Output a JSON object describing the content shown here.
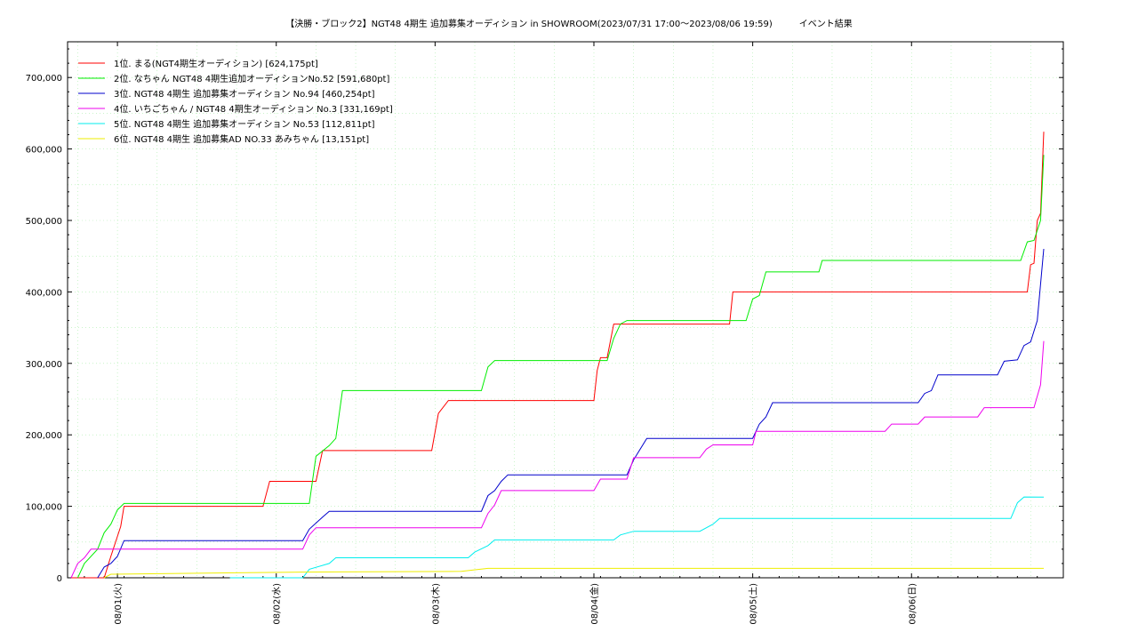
{
  "chart_data": {
    "type": "line",
    "title": "【決勝・ブロック2】NGT48 4期生 追加募集オーディション in SHOWROOM(2023/07/31 17:00～2023/08/06 19:59)　　　イベント結果",
    "xlabel": "",
    "ylabel": "",
    "ylim": [
      0,
      750000
    ],
    "xlim": [
      "2023/07/31 17:00",
      "2023/08/06 19:59"
    ],
    "grid": true,
    "legend": "top-left",
    "y_ticks": [
      "0",
      "100,000",
      "200,000",
      "300,000",
      "400,000",
      "500,000",
      "600,000",
      "700,000"
    ],
    "x_ticks": [
      "08/01(火)",
      "08/02(水)",
      "08/03(木)",
      "08/04(金)",
      "08/05(土)",
      "08/06(日)"
    ],
    "series": [
      {
        "name": "1位. まる(NGT4期生オーディション) [624,175pt]",
        "color": "#ff0000",
        "points": [
          [
            "07/31 17:00",
            0
          ],
          [
            "07/31 22:00",
            0
          ],
          [
            "07/31 23:00",
            30000
          ],
          [
            "08/01 00:00",
            58000
          ],
          [
            "08/01 00:30",
            72000
          ],
          [
            "08/01 01:00",
            100000
          ],
          [
            "08/01 22:00",
            100000
          ],
          [
            "08/01 23:00",
            135000
          ],
          [
            "08/02 06:00",
            135000
          ],
          [
            "08/02 07:00",
            178000
          ],
          [
            "08/02 23:30",
            178000
          ],
          [
            "08/03 00:30",
            230000
          ],
          [
            "08/03 02:00",
            248000
          ],
          [
            "08/04 00:00",
            248000
          ],
          [
            "08/04 00:30",
            290000
          ],
          [
            "08/04 01:00",
            308000
          ],
          [
            "08/04 02:00",
            308000
          ],
          [
            "08/04 03:00",
            355000
          ],
          [
            "08/04 20:30",
            355000
          ],
          [
            "08/04 21:00",
            400000
          ],
          [
            "08/06 17:30",
            400000
          ],
          [
            "08/06 18:00",
            438000
          ],
          [
            "08/06 18:30",
            440000
          ],
          [
            "08/06 19:00",
            500000
          ],
          [
            "08/06 19:30",
            510000
          ],
          [
            "08/06 19:59",
            624175
          ]
        ]
      },
      {
        "name": "2位. なちゃん NGT48 4期生追加オーディションNo.52 [591,680pt]",
        "color": "#00ee00",
        "points": [
          [
            "07/31 18:00",
            0
          ],
          [
            "07/31 19:00",
            20000
          ],
          [
            "07/31 21:00",
            40000
          ],
          [
            "07/31 22:00",
            63000
          ],
          [
            "07/31 23:00",
            75000
          ],
          [
            "08/01 00:00",
            95000
          ],
          [
            "08/01 01:00",
            104000
          ],
          [
            "08/02 05:00",
            104000
          ],
          [
            "08/02 06:00",
            170000
          ],
          [
            "08/02 08:00",
            185000
          ],
          [
            "08/02 09:00",
            195000
          ],
          [
            "08/02 10:00",
            262000
          ],
          [
            "08/03 07:00",
            262000
          ],
          [
            "08/03 08:00",
            295000
          ],
          [
            "08/03 09:00",
            304000
          ],
          [
            "08/04 02:00",
            304000
          ],
          [
            "08/04 03:00",
            335000
          ],
          [
            "08/04 04:00",
            355000
          ],
          [
            "08/04 05:00",
            360000
          ],
          [
            "08/04 23:00",
            360000
          ],
          [
            "08/05 00:00",
            390000
          ],
          [
            "08/05 01:00",
            395000
          ],
          [
            "08/05 02:00",
            428000
          ],
          [
            "08/05 10:00",
            428000
          ],
          [
            "08/05 10:30",
            444000
          ],
          [
            "08/06 16:30",
            444000
          ],
          [
            "08/06 17:30",
            470000
          ],
          [
            "08/06 18:30",
            472000
          ],
          [
            "08/06 19:30",
            500000
          ],
          [
            "08/06 19:59",
            591680
          ]
        ]
      },
      {
        "name": "3位. NGT48 4期生 追加募集オーディション No.94 [460,254pt]",
        "color": "#0000cc",
        "points": [
          [
            "07/31 21:00",
            0
          ],
          [
            "07/31 22:00",
            15000
          ],
          [
            "07/31 23:00",
            20000
          ],
          [
            "08/01 00:00",
            30000
          ],
          [
            "08/01 01:00",
            52000
          ],
          [
            "08/02 04:00",
            52000
          ],
          [
            "08/02 05:00",
            68000
          ],
          [
            "08/02 07:00",
            85000
          ],
          [
            "08/02 08:00",
            93000
          ],
          [
            "08/03 07:00",
            93000
          ],
          [
            "08/03 08:00",
            115000
          ],
          [
            "08/03 09:00",
            122000
          ],
          [
            "08/03 10:00",
            135000
          ],
          [
            "08/03 11:00",
            144000
          ],
          [
            "08/04 05:00",
            144000
          ],
          [
            "08/04 06:00",
            165000
          ],
          [
            "08/04 08:00",
            195000
          ],
          [
            "08/05 00:00",
            195000
          ],
          [
            "08/05 01:00",
            215000
          ],
          [
            "08/05 02:00",
            225000
          ],
          [
            "08/05 03:00",
            245000
          ],
          [
            "08/06 01:00",
            245000
          ],
          [
            "08/06 02:00",
            258000
          ],
          [
            "08/06 03:00",
            262000
          ],
          [
            "08/06 04:00",
            284000
          ],
          [
            "08/06 13:00",
            284000
          ],
          [
            "08/06 14:00",
            303000
          ],
          [
            "08/06 16:00",
            305000
          ],
          [
            "08/06 17:00",
            325000
          ],
          [
            "08/06 18:00",
            330000
          ],
          [
            "08/06 19:00",
            360000
          ],
          [
            "08/06 19:59",
            460254
          ]
        ]
      },
      {
        "name": "4位. いちごちゃん / NGT48 4期生オーディション No.3 [331,169pt]",
        "color": "#ee00ee",
        "points": [
          [
            "07/31 17:00",
            0
          ],
          [
            "07/31 18:00",
            20000
          ],
          [
            "07/31 19:00",
            28000
          ],
          [
            "07/31 20:00",
            40000
          ],
          [
            "08/01 05:00",
            40000
          ],
          [
            "08/02 04:00",
            40000
          ],
          [
            "08/02 05:00",
            60000
          ],
          [
            "08/02 06:00",
            70000
          ],
          [
            "08/03 07:00",
            70000
          ],
          [
            "08/03 08:00",
            90000
          ],
          [
            "08/03 09:00",
            102000
          ],
          [
            "08/03 10:00",
            122000
          ],
          [
            "08/04 00:00",
            122000
          ],
          [
            "08/04 01:00",
            138000
          ],
          [
            "08/04 05:00",
            138000
          ],
          [
            "08/04 06:00",
            168000
          ],
          [
            "08/04 16:00",
            168000
          ],
          [
            "08/04 17:00",
            180000
          ],
          [
            "08/04 18:00",
            186000
          ],
          [
            "08/05 00:00",
            186000
          ],
          [
            "08/05 00:30",
            205000
          ],
          [
            "08/05 20:00",
            205000
          ],
          [
            "08/05 21:00",
            215000
          ],
          [
            "08/06 01:00",
            215000
          ],
          [
            "08/06 02:00",
            225000
          ],
          [
            "08/06 10:00",
            225000
          ],
          [
            "08/06 11:00",
            238000
          ],
          [
            "08/06 18:30",
            238000
          ],
          [
            "08/06 19:30",
            270000
          ],
          [
            "08/06 19:59",
            331169
          ]
        ]
      },
      {
        "name": "5位. NGT48 4期生 追加募集オーディション No.53 [112,811pt]",
        "color": "#00eeee",
        "points": [
          [
            "08/01 17:00",
            0
          ],
          [
            "08/02 04:00",
            0
          ],
          [
            "08/02 05:00",
            12000
          ],
          [
            "08/02 08:00",
            20000
          ],
          [
            "08/02 09:00",
            28000
          ],
          [
            "08/03 05:00",
            28000
          ],
          [
            "08/03 06:00",
            36000
          ],
          [
            "08/03 08:00",
            45000
          ],
          [
            "08/03 09:00",
            53000
          ],
          [
            "08/04 03:00",
            53000
          ],
          [
            "08/04 04:00",
            60000
          ],
          [
            "08/04 06:00",
            65000
          ],
          [
            "08/04 16:00",
            65000
          ],
          [
            "08/04 18:00",
            75000
          ],
          [
            "08/04 19:00",
            83000
          ],
          [
            "08/06 15:00",
            83000
          ],
          [
            "08/06 16:00",
            105000
          ],
          [
            "08/06 17:00",
            113000
          ],
          [
            "08/06 19:59",
            112811
          ]
        ]
      },
      {
        "name": "6位. NGT48 4期生 追加募集AD NO.33 あみちゃん [13,151pt]",
        "color": "#eeee00",
        "points": [
          [
            "07/31 22:00",
            0
          ],
          [
            "07/31 23:00",
            5000
          ],
          [
            "08/02 04:00",
            8000
          ],
          [
            "08/03 04:00",
            9000
          ],
          [
            "08/03 08:00",
            13151
          ],
          [
            "08/06 19:59",
            13151
          ]
        ]
      }
    ]
  }
}
